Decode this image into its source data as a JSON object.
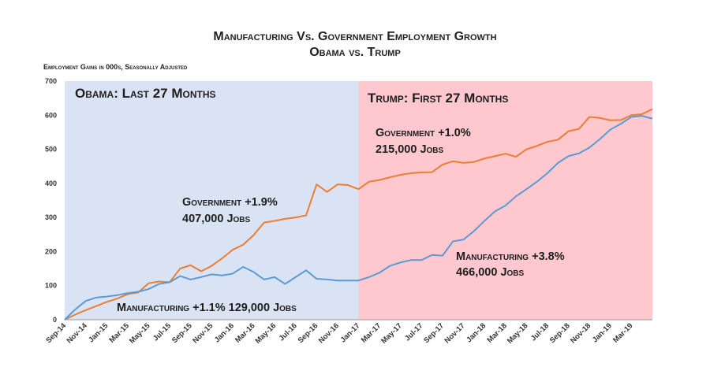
{
  "header": {
    "title": "Manufacturing Vs. Government Employment Growth",
    "subtitle": "Obama vs. Trump",
    "unit_note": "Employment Gains in 000s, Seasonally Adjusted"
  },
  "panels": {
    "left_label": "Obama: Last 27 Months",
    "right_label": "Trump: First 27 Months",
    "left_color": "#dae3f3",
    "right_color": "#ffc7ce"
  },
  "annotations": {
    "gov_obama_line1": "Government +1.9%",
    "gov_obama_line2": "407,000 Jobs",
    "mfg_obama": "Manufacturing +1.1% 129,000 Jobs",
    "gov_trump_line1": "Government +1.0%",
    "gov_trump_line2": "215,000 Jobs",
    "mfg_trump_line1": "Manufacturing +3.8%",
    "mfg_trump_line2": "466,000 Jobs"
  },
  "chart_data": {
    "type": "line",
    "ylim": [
      0,
      700
    ],
    "yticks": [
      0,
      100,
      200,
      300,
      400,
      500,
      600,
      700
    ],
    "x_tick_labels": [
      "Sep-14",
      "Nov-14",
      "Jan-15",
      "Mar-15",
      "May-15",
      "Jul-15",
      "Sep-15",
      "Nov-15",
      "Jan-16",
      "Mar-16",
      "May-16",
      "Jul-16",
      "Sep-16",
      "Nov-16",
      "Jan-17",
      "Mar-17",
      "May-17",
      "Jul-17",
      "Sep-17",
      "Nov-17",
      "Jan-18",
      "Mar-18",
      "May-18",
      "Jul-18",
      "Sep-18",
      "Nov-18",
      "Jan-19",
      "Mar-19"
    ],
    "series": [
      {
        "name": "Government",
        "color": "#ed7d31",
        "values": [
          0,
          15,
          28,
          40,
          52,
          62,
          75,
          80,
          107,
          112,
          110,
          150,
          160,
          142,
          158,
          180,
          205,
          220,
          248,
          285,
          290,
          296,
          300,
          306,
          397,
          375,
          397,
          395,
          383,
          405,
          410,
          418,
          425,
          430,
          432,
          433,
          455,
          465,
          460,
          463,
          473,
          480,
          487,
          478,
          500,
          510,
          522,
          528,
          553,
          560,
          595,
          592,
          585,
          586,
          600,
          603,
          618
        ]
      },
      {
        "name": "Manufacturing",
        "color": "#5b9bd5",
        "values": [
          0,
          30,
          55,
          65,
          68,
          72,
          78,
          82,
          90,
          105,
          110,
          128,
          118,
          125,
          133,
          130,
          135,
          155,
          140,
          118,
          125,
          105,
          125,
          145,
          120,
          118,
          115,
          115,
          115,
          125,
          138,
          158,
          168,
          175,
          175,
          190,
          188,
          230,
          235,
          260,
          290,
          318,
          335,
          362,
          383,
          405,
          430,
          460,
          480,
          488,
          505,
          530,
          558,
          575,
          595,
          598,
          590
        ]
      }
    ]
  }
}
